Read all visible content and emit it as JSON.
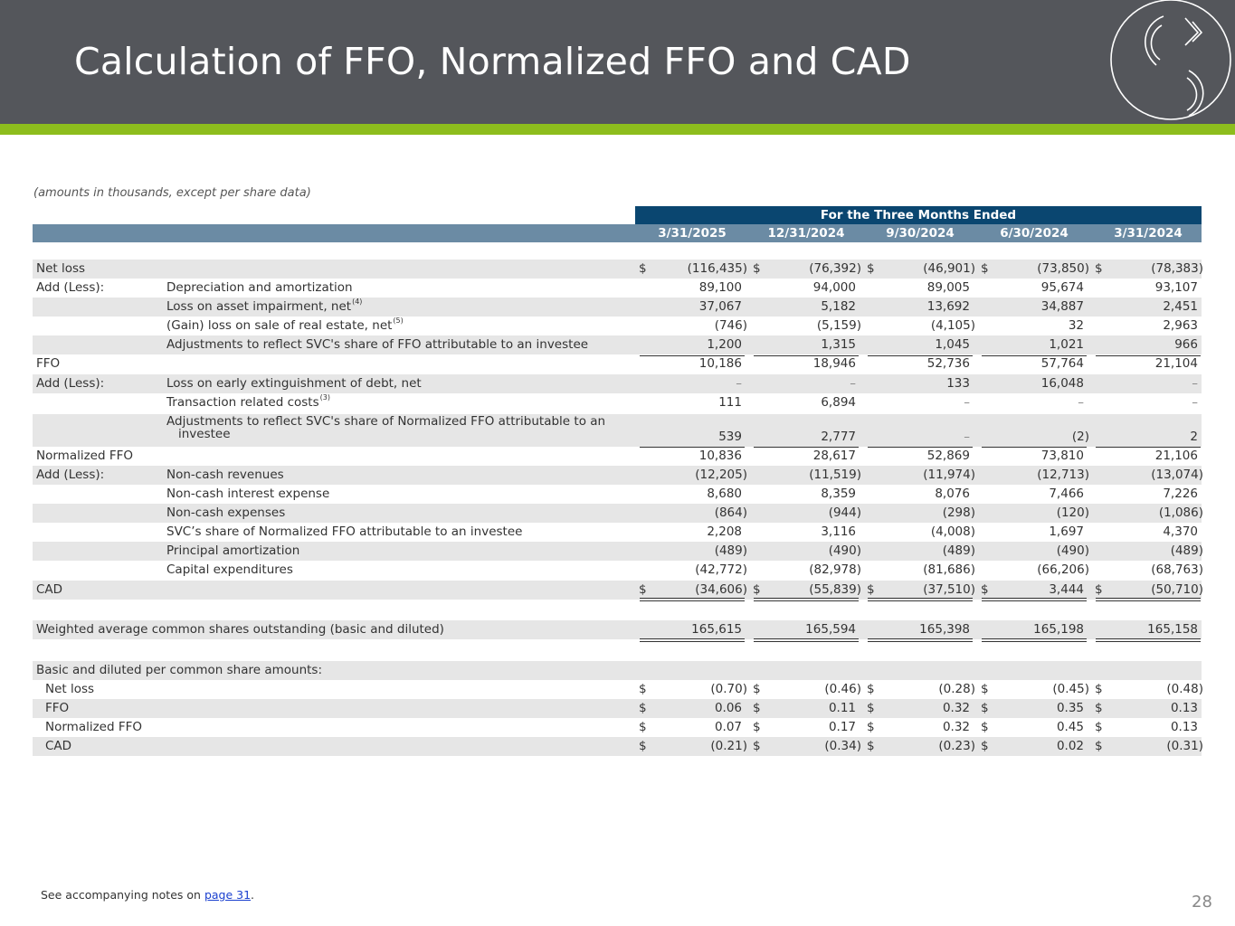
{
  "title": "Calculation of FFO, Normalized FFO and CAD",
  "units_note": "(amounts in thousands, except per share data)",
  "banner": "For the Three Months Ended",
  "columns": [
    "3/31/2025",
    "12/31/2024",
    "9/30/2024",
    "6/30/2024",
    "3/31/2024"
  ],
  "rows": [
    {
      "label": "Net loss",
      "desc": "",
      "dollar": true,
      "values": [
        "(116,435)",
        "(76,392)",
        "(46,901)",
        "(73,850)",
        "(78,383)"
      ]
    },
    {
      "label": "Add (Less):",
      "desc": "Depreciation and amortization",
      "values": [
        "89,100",
        "94,000",
        "89,005",
        "95,674",
        "93,107"
      ]
    },
    {
      "label": "",
      "desc": "Loss on asset impairment, net",
      "sup": "(4)",
      "values": [
        "37,067",
        "5,182",
        "13,692",
        "34,887",
        "2,451"
      ]
    },
    {
      "label": "",
      "desc": "(Gain) loss on sale of real estate, net",
      "sup": "(5)",
      "values": [
        "(746)",
        "(5,159)",
        "(4,105)",
        "32",
        "2,963"
      ]
    },
    {
      "label": "",
      "desc": "Adjustments to reflect SVC's share of FFO attributable to an investee",
      "values": [
        "1,200",
        "1,315",
        "1,045",
        "1,021",
        "966"
      ]
    },
    {
      "label": "FFO",
      "desc": "",
      "values": [
        "10,186",
        "18,946",
        "52,736",
        "57,764",
        "21,104"
      ]
    },
    {
      "label": "Add (Less):",
      "desc": "Loss on early extinguishment of debt, net",
      "values": [
        "–",
        "–",
        "133",
        "16,048",
        "–"
      ]
    },
    {
      "label": "",
      "desc": "Transaction related costs",
      "sup": "(3)",
      "values": [
        "111",
        "6,894",
        "–",
        "–",
        "–"
      ]
    },
    {
      "label": "",
      "desc": "Adjustments to reflect SVC's share of Normalized FFO attributable to an",
      "desc2": "investee",
      "values": [
        "539",
        "2,777",
        "–",
        "(2)",
        "2"
      ]
    },
    {
      "label": "Normalized FFO",
      "desc": "",
      "values": [
        "10,836",
        "28,617",
        "52,869",
        "73,810",
        "21,106"
      ]
    },
    {
      "label": "Add (Less):",
      "desc": "Non-cash revenues",
      "values": [
        "(12,205)",
        "(11,519)",
        "(11,974)",
        "(12,713)",
        "(13,074)"
      ]
    },
    {
      "label": "",
      "desc": "Non-cash interest expense",
      "values": [
        "8,680",
        "8,359",
        "8,076",
        "7,466",
        "7,226"
      ]
    },
    {
      "label": "",
      "desc": "Non-cash expenses",
      "values": [
        "(864)",
        "(944)",
        "(298)",
        "(120)",
        "(1,086)"
      ]
    },
    {
      "label": "",
      "desc": "SVC’s share of Normalized FFO attributable to an investee",
      "values": [
        "2,208",
        "3,116",
        "(4,008)",
        "1,697",
        "4,370"
      ]
    },
    {
      "label": "",
      "desc": "Principal amortization",
      "values": [
        "(489)",
        "(490)",
        "(489)",
        "(490)",
        "(489)"
      ]
    },
    {
      "label": "",
      "desc": "Capital expenditures",
      "values": [
        "(42,772)",
        "(82,978)",
        "(81,686)",
        "(66,206)",
        "(68,763)"
      ]
    },
    {
      "label": "CAD",
      "desc": "",
      "dollar": true,
      "values": [
        "(34,606)",
        "(55,839)",
        "(37,510)",
        "3,444",
        "(50,710)"
      ]
    },
    {
      "label": "Weighted average common shares outstanding (basic and diluted)",
      "desc": "",
      "values": [
        "165,615",
        "165,594",
        "165,398",
        "165,198",
        "165,158"
      ]
    },
    {
      "label": "Basic and diluted per common share amounts:",
      "desc": "",
      "values": [
        "",
        "",
        "",
        "",
        ""
      ]
    },
    {
      "label": "Net loss",
      "indent": true,
      "desc": "",
      "dollar": true,
      "values": [
        "(0.70)",
        "(0.46)",
        "(0.28)",
        "(0.45)",
        "(0.48)"
      ]
    },
    {
      "label": "FFO",
      "indent": true,
      "desc": "",
      "dollar": true,
      "values": [
        "0.06",
        "0.11",
        "0.32",
        "0.35",
        "0.13"
      ]
    },
    {
      "label": "Normalized FFO",
      "indent": true,
      "desc": "",
      "dollar": true,
      "values": [
        "0.07",
        "0.17",
        "0.32",
        "0.45",
        "0.13"
      ]
    },
    {
      "label": "CAD",
      "indent": true,
      "desc": "",
      "dollar": true,
      "values": [
        "(0.21)",
        "(0.34)",
        "(0.23)",
        "0.02",
        "(0.31)"
      ]
    }
  ],
  "dollar_sign": "$",
  "footnote": {
    "prefix": "See accompanying notes on ",
    "link": "page 31",
    "suffix": "."
  },
  "page_number": "28",
  "colors": {
    "header": "#54565b",
    "stripe": "#8dbd1d",
    "banner": "#0a4670",
    "col_head": "#6b8ba4",
    "shade": "#e6e6e6"
  }
}
